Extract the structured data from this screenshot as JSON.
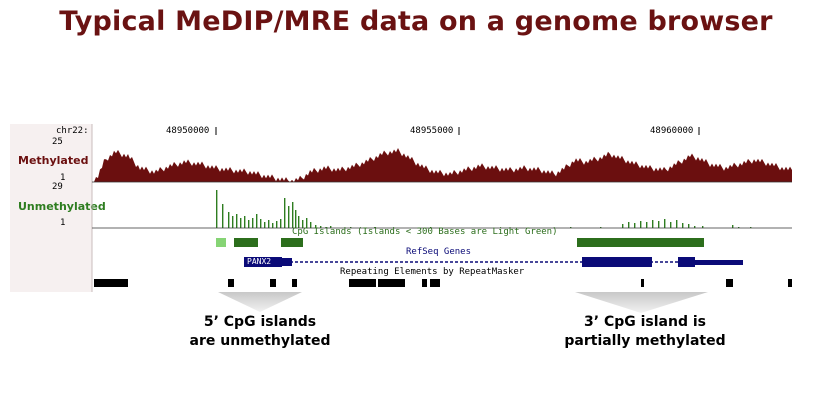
{
  "title": "Typical MeDIP/MRE data on a genome browser",
  "browser": {
    "chrom_label": "chr22:",
    "positions": [
      "48950000",
      "48955000",
      "48960000"
    ],
    "methylated": {
      "label": "Methylated",
      "scale_max": "25",
      "scale_min": "1",
      "color": "#6b0f0f"
    },
    "unmethylated": {
      "label": "Unmethylated",
      "scale_max": "29",
      "scale_min": "1",
      "color": "#2e7d20"
    },
    "cpg_track": {
      "title": "CpG Islands (Islands < 300 Bases are Light Green)",
      "dark_color": "#2c6e1c",
      "light_color": "#86d475"
    },
    "refseq_track": {
      "title": "RefSeq Genes",
      "gene_name": "PANX2",
      "color": "#0b0b78"
    },
    "repeat_track": {
      "title": "Repeating Elements by RepeatMasker",
      "color": "#000000"
    }
  },
  "callouts": {
    "left": {
      "line1": "5’ CpG islands",
      "line2": "are unmethylated"
    },
    "right": {
      "line1": "3’ CpG island is",
      "line2": "partially methylated"
    }
  }
}
